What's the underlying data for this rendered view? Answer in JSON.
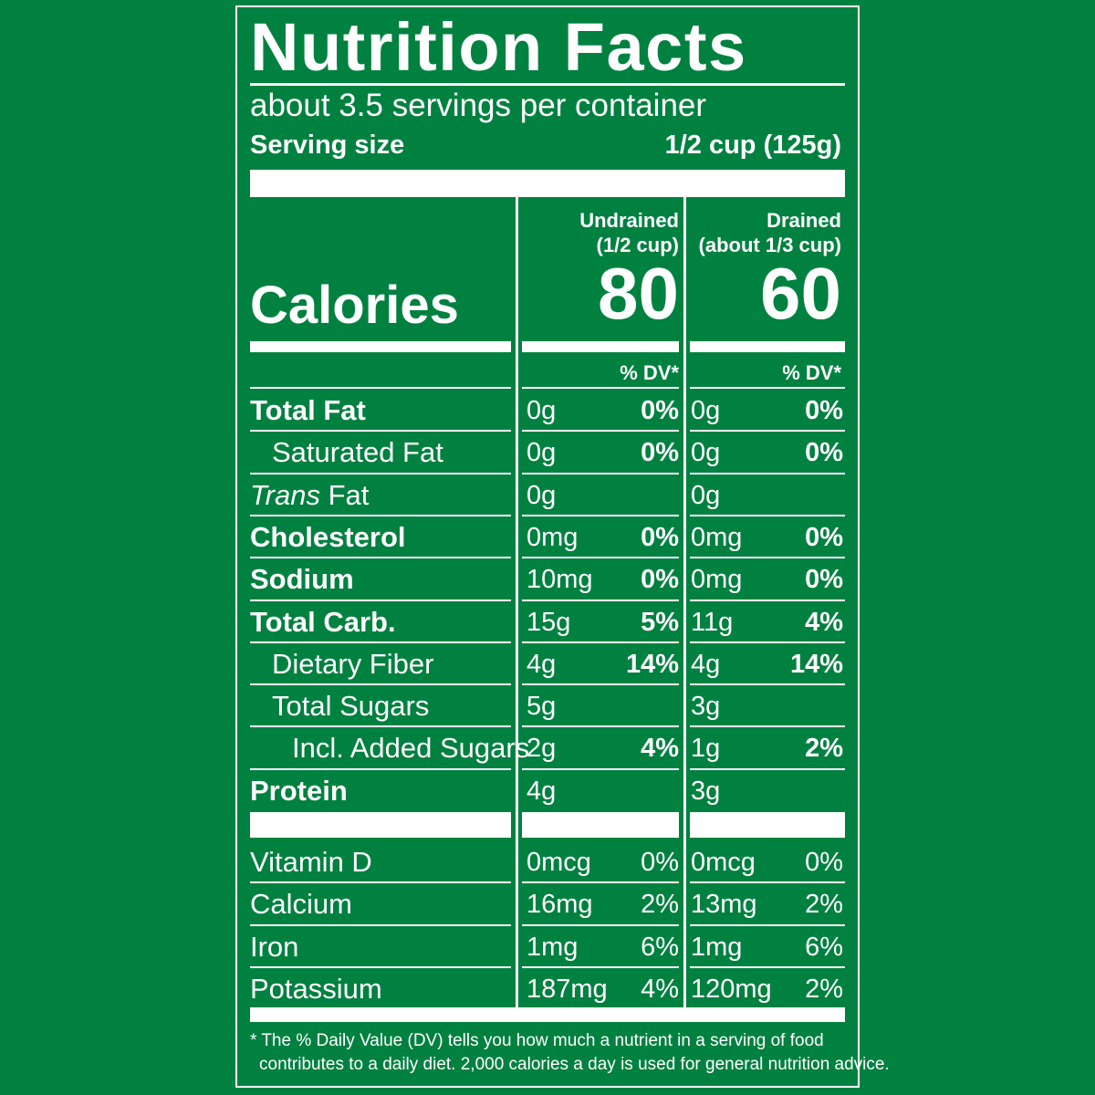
{
  "title": "Nutrition Facts",
  "servings_per_container": "about 3.5 servings per container",
  "serving_size_label": "Serving size",
  "serving_size_value": "1/2 cup (125g)",
  "columns": [
    {
      "name": "Undrained",
      "amount": "(1/2 cup)",
      "calories": "80"
    },
    {
      "name": "Drained",
      "amount": "(about 1/3 cup)",
      "calories": "60"
    }
  ],
  "calories_label": "Calories",
  "dv_header": "% DV*",
  "nutrients": [
    {
      "name": "Total Fat",
      "values": [
        {
          "amount": "0g",
          "dv": "0%"
        },
        {
          "amount": "0g",
          "dv": "0%"
        }
      ]
    },
    {
      "name": "Saturated Fat",
      "values": [
        {
          "amount": "0g",
          "dv": "0%"
        },
        {
          "amount": "0g",
          "dv": "0%"
        }
      ]
    },
    {
      "name_italic": "Trans",
      "name_rest": " Fat",
      "values": [
        {
          "amount": "0g",
          "dv": ""
        },
        {
          "amount": "0g",
          "dv": ""
        }
      ]
    },
    {
      "name": "Cholesterol",
      "values": [
        {
          "amount": "0mg",
          "dv": "0%"
        },
        {
          "amount": "0mg",
          "dv": "0%"
        }
      ]
    },
    {
      "name": "Sodium",
      "values": [
        {
          "amount": "10mg",
          "dv": "0%"
        },
        {
          "amount": "0mg",
          "dv": "0%"
        }
      ]
    },
    {
      "name": "Total Carb.",
      "values": [
        {
          "amount": "15g",
          "dv": "5%"
        },
        {
          "amount": "11g",
          "dv": "4%"
        }
      ]
    },
    {
      "name": "Dietary Fiber",
      "values": [
        {
          "amount": "4g",
          "dv": "14%"
        },
        {
          "amount": "4g",
          "dv": "14%"
        }
      ]
    },
    {
      "name": "Total Sugars",
      "values": [
        {
          "amount": "5g",
          "dv": ""
        },
        {
          "amount": "3g",
          "dv": ""
        }
      ]
    },
    {
      "name": "Incl. Added Sugars",
      "values": [
        {
          "amount": "2g",
          "dv": "4%"
        },
        {
          "amount": "1g",
          "dv": "2%"
        }
      ]
    },
    {
      "name": "Protein",
      "values": [
        {
          "amount": "4g",
          "dv": ""
        },
        {
          "amount": "3g",
          "dv": ""
        }
      ]
    }
  ],
  "vitamins": [
    {
      "name": "Vitamin D",
      "values": [
        {
          "amount": "0mcg",
          "dv": "0%"
        },
        {
          "amount": "0mcg",
          "dv": "0%"
        }
      ]
    },
    {
      "name": "Calcium",
      "values": [
        {
          "amount": "16mg",
          "dv": "2%"
        },
        {
          "amount": "13mg",
          "dv": "2%"
        }
      ]
    },
    {
      "name": "Iron",
      "values": [
        {
          "amount": "1mg",
          "dv": "6%"
        },
        {
          "amount": "1mg",
          "dv": "6%"
        }
      ]
    },
    {
      "name": "Potassium",
      "values": [
        {
          "amount": "187mg",
          "dv": "4%"
        },
        {
          "amount": "120mg",
          "dv": "2%"
        }
      ]
    }
  ],
  "footnote_line1": "* The % Daily Value (DV) tells you how much a nutrient in a serving of food",
  "footnote_line2": "contributes to a daily diet. 2,000 calories a day is used for general nutrition advice.",
  "colors": {
    "background": "#008140",
    "ink": "#ffffff"
  }
}
